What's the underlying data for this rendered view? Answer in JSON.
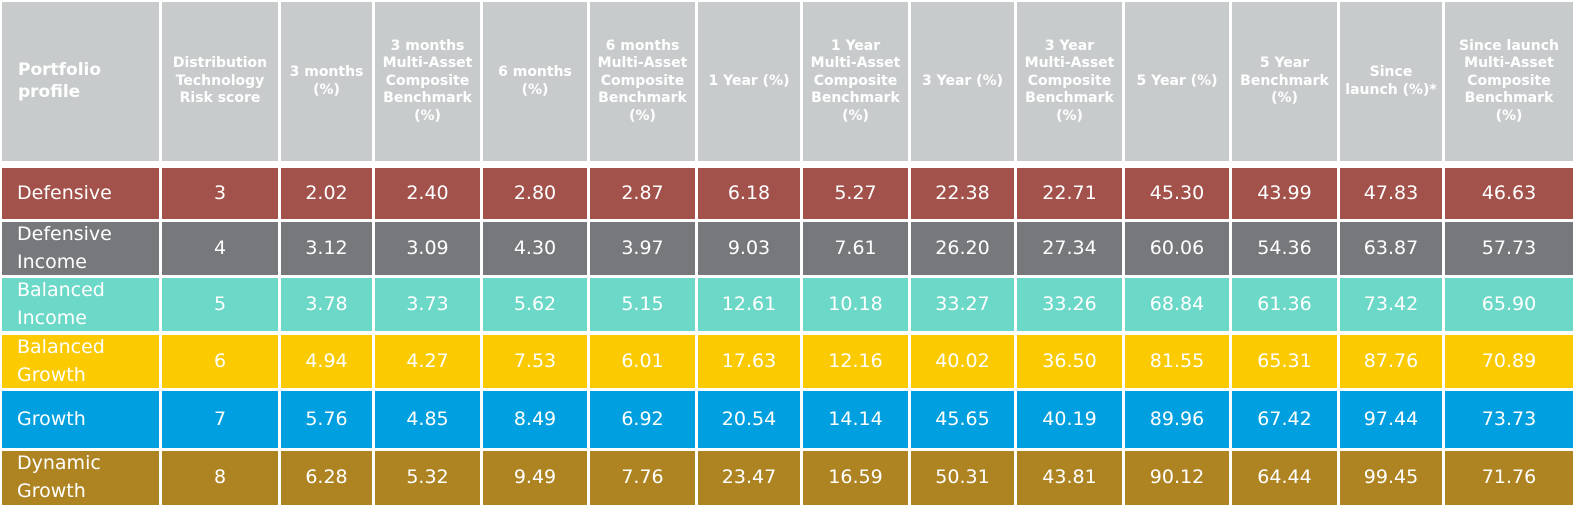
{
  "chart_data": {
    "type": "table",
    "columns": [
      "Portfolio profile",
      "Distribution Technology Risk score",
      "3 months (%)",
      "3 months Multi-Asset Composite Benchmark (%)",
      "6 months (%)",
      "6 months Multi-Asset Composite Benchmark (%)",
      "1 Year (%)",
      "1 Year Multi-Asset Composite Benchmark (%)",
      "3 Year (%)",
      "3 Year Multi-Asset Composite Benchmark (%)",
      "5 Year (%)",
      "5 Year Benchmark (%)",
      "Since launch (%)*",
      "Since launch Multi-Asset Composite Benchmark (%)"
    ],
    "rows": [
      {
        "profile": "Defensive",
        "color": "#a2514b",
        "values": [
          "3",
          "2.02",
          "2.40",
          "2.80",
          "2.87",
          "6.18",
          "5.27",
          "22.38",
          "22.71",
          "45.30",
          "43.99",
          "47.83",
          "46.63"
        ]
      },
      {
        "profile": "Defensive Income",
        "color": "#77787b",
        "values": [
          "4",
          "3.12",
          "3.09",
          "4.30",
          "3.97",
          "9.03",
          "7.61",
          "26.20",
          "27.34",
          "60.06",
          "54.36",
          "63.87",
          "57.73"
        ]
      },
      {
        "profile": "Balanced Income",
        "color": "#6cd8c7",
        "values": [
          "5",
          "3.78",
          "3.73",
          "5.62",
          "5.15",
          "12.61",
          "10.18",
          "33.27",
          "33.26",
          "68.84",
          "61.36",
          "73.42",
          "65.90"
        ]
      },
      {
        "profile": "Balanced Growth",
        "color": "#fbca00",
        "values": [
          "6",
          "4.94",
          "4.27",
          "7.53",
          "6.01",
          "17.63",
          "12.16",
          "40.02",
          "36.50",
          "81.55",
          "65.31",
          "87.76",
          "70.89"
        ]
      },
      {
        "profile": "Growth",
        "color": "#009fdf",
        "values": [
          "7",
          "5.76",
          "4.85",
          "8.49",
          "6.92",
          "20.54",
          "14.14",
          "45.65",
          "40.19",
          "89.96",
          "67.42",
          "97.44",
          "73.73"
        ]
      },
      {
        "profile": "Dynamic Growth",
        "color": "#ae8423",
        "values": [
          "8",
          "6.28",
          "5.32",
          "9.49",
          "7.76",
          "23.47",
          "16.59",
          "50.31",
          "43.81",
          "90.12",
          "64.44",
          "99.45",
          "71.76"
        ]
      }
    ]
  }
}
